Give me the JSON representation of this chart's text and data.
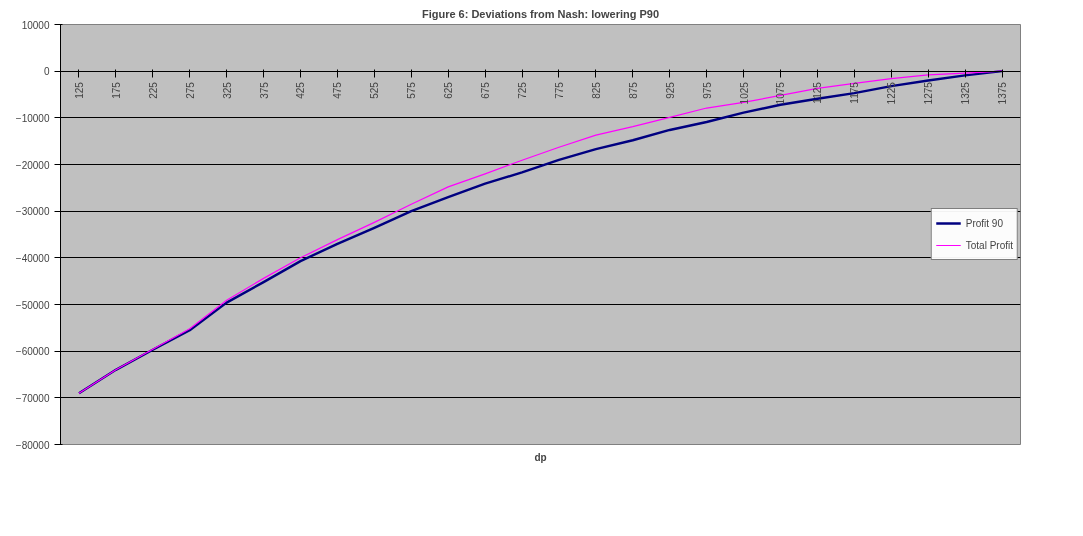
{
  "chart_data": {
    "type": "line",
    "title": "Figure 6: Deviations from Nash: lowering P90",
    "xlabel": "dp",
    "categories": [
      "125",
      "175",
      "225",
      "275",
      "325",
      "375",
      "425",
      "475",
      "525",
      "575",
      "625",
      "675",
      "725",
      "775",
      "825",
      "875",
      "925",
      "975",
      "1025",
      "1075",
      "1125",
      "1175",
      "1225",
      "1275",
      "1325",
      "1375"
    ],
    "series": [
      {
        "name": "Profit 90",
        "color": "#000080",
        "values": [
          -69000,
          -64000,
          -59700,
          -55500,
          -49600,
          -45200,
          -40700,
          -37000,
          -33600,
          -30000,
          -27000,
          -24100,
          -21700,
          -19000,
          -16700,
          -14800,
          -12600,
          -10900,
          -8900,
          -7200,
          -5900,
          -4700,
          -3200,
          -2000,
          -900,
          0
        ]
      },
      {
        "name": "Total Profit",
        "color": "#ff00ff",
        "values": [
          -69000,
          -64000,
          -59600,
          -55200,
          -49100,
          -44400,
          -40000,
          -36100,
          -32400,
          -28500,
          -24800,
          -22000,
          -19100,
          -16300,
          -13700,
          -11900,
          -9900,
          -7900,
          -6700,
          -5200,
          -3700,
          -2600,
          -1600,
          -800,
          -400,
          0
        ]
      }
    ],
    "ylim": [
      -80000,
      10000
    ],
    "yticks": [
      -80000,
      -70000,
      -60000,
      -50000,
      -40000,
      -30000,
      -20000,
      -10000,
      0,
      10000
    ],
    "grid": "y",
    "legend": "right",
    "marker": "none",
    "line_style": "solid"
  }
}
